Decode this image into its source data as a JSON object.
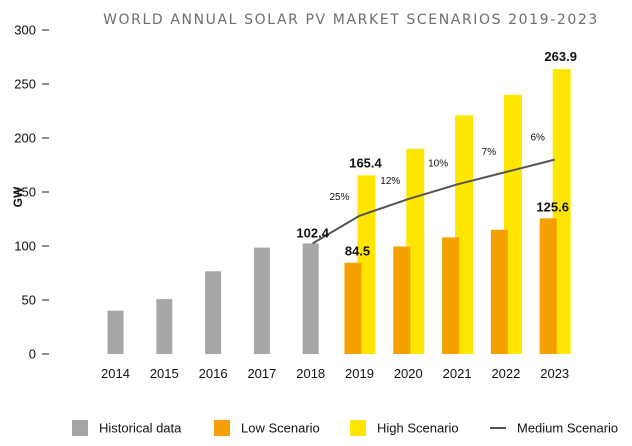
{
  "chart_data": {
    "type": "bar",
    "title": "WORLD ANNUAL SOLAR PV MARKET SCENARIOS 2019-2023",
    "ylabel": "GW",
    "xlabel": "",
    "ylim": [
      0,
      300
    ],
    "yticks": [
      0,
      50,
      100,
      150,
      200,
      250,
      300
    ],
    "categories": [
      "2014",
      "2015",
      "2016",
      "2017",
      "2018",
      "2019",
      "2020",
      "2021",
      "2022",
      "2023"
    ],
    "series": [
      {
        "name": "Historical data",
        "type": "bar",
        "color": "#a7a7a9",
        "values": [
          40.1,
          50.8,
          76.6,
          98.5,
          102.4,
          null,
          null,
          null,
          null,
          null
        ]
      },
      {
        "name": "Low Scenario",
        "type": "bar",
        "color": "#f5a000",
        "values": [
          null,
          null,
          null,
          null,
          null,
          84.5,
          99.5,
          108,
          115,
          125.6
        ]
      },
      {
        "name": "High Scenario",
        "type": "bar",
        "color": "#ffe600",
        "values": [
          null,
          null,
          null,
          null,
          null,
          165.4,
          190,
          221,
          240,
          263.9
        ]
      },
      {
        "name": "Medium Scenario",
        "type": "line",
        "color": "#555555",
        "values": [
          null,
          null,
          null,
          null,
          102.4,
          128,
          143.5,
          157,
          168.5,
          180
        ]
      }
    ],
    "data_labels": [
      {
        "category": "2018",
        "series": "Historical data",
        "text": "102.4"
      },
      {
        "category": "2019",
        "series": "Low Scenario",
        "text": "84.5"
      },
      {
        "category": "2019",
        "series": "High Scenario",
        "text": "165.4"
      },
      {
        "category": "2023",
        "series": "Low Scenario",
        "text": "125.6"
      },
      {
        "category": "2023",
        "series": "High Scenario",
        "text": "263.9"
      }
    ],
    "growth_labels": [
      {
        "category": "2019",
        "text": "25%"
      },
      {
        "category": "2020",
        "text": "12%"
      },
      {
        "category": "2021",
        "text": "10%"
      },
      {
        "category": "2022",
        "text": "7%"
      },
      {
        "category": "2023",
        "text": "6%"
      }
    ],
    "grid": false,
    "legend_position": "bottom"
  }
}
